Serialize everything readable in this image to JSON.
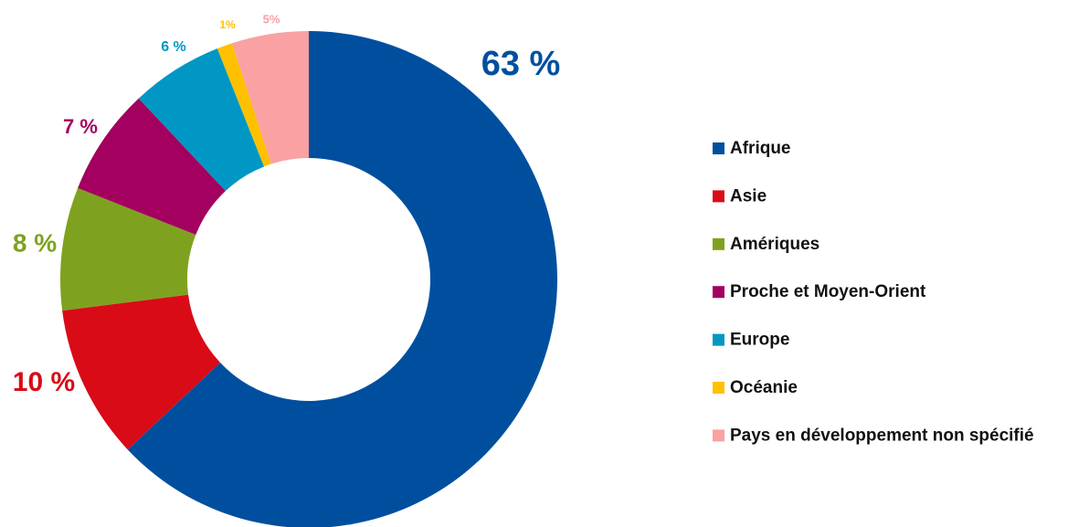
{
  "chart_data": {
    "type": "donut",
    "categories": [
      "Afrique",
      "Asie",
      "Amériques",
      "Proche et Moyen-Orient",
      "Europe",
      "Océanie",
      "Pays en développement non spécifié"
    ],
    "values": [
      63,
      10,
      8,
      7,
      6,
      1,
      5
    ],
    "value_labels": [
      "63 %",
      "10 %",
      "8 %",
      "7 %",
      "6 %",
      "1%",
      "5%"
    ],
    "colors": [
      "#004f9f",
      "#d90b17",
      "#7ea21f",
      "#a3005f",
      "#0097c4",
      "#ffc000",
      "#f9a1a3"
    ],
    "legend": "right"
  }
}
